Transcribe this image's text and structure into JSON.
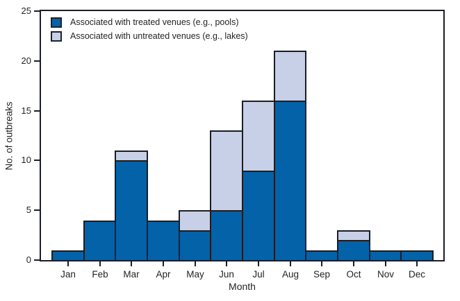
{
  "chart_data": {
    "type": "bar",
    "stacked": true,
    "title": "",
    "xlabel": "Month",
    "ylabel": "No. of outbreaks",
    "categories": [
      "Jan",
      "Feb",
      "Mar",
      "Apr",
      "May",
      "Jun",
      "Jul",
      "Aug",
      "Sep",
      "Oct",
      "Nov",
      "Dec"
    ],
    "series": [
      {
        "name": "Associated with treated venues (e.g., pools)",
        "color": "#0462A8",
        "values": [
          1,
          4,
          10,
          4,
          3,
          5,
          9,
          16,
          1,
          2,
          1,
          1
        ]
      },
      {
        "name": "Associated with untreated venues (e.g., lakes)",
        "color": "#C7D0E6",
        "values": [
          0,
          0,
          1,
          0,
          2,
          8,
          7,
          5,
          0,
          1,
          0,
          0
        ]
      }
    ],
    "totals": [
      1,
      4,
      11,
      4,
      5,
      13,
      16,
      21,
      1,
      3,
      1,
      1
    ],
    "ylim": [
      0,
      25
    ],
    "yticks": [
      0,
      5,
      10,
      15,
      20,
      25
    ],
    "grid": false,
    "legend_position": "top-left-inside",
    "frame_color": "#1A1D26",
    "text_color": "#231F20"
  }
}
